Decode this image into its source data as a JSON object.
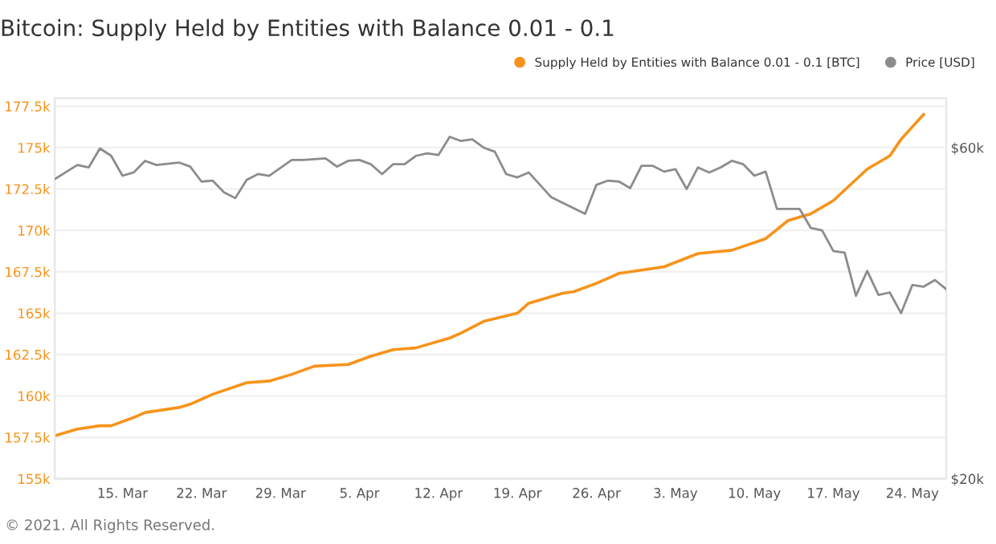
{
  "chart_data": {
    "type": "line",
    "title": "Bitcoin: Supply Held by Entities with Balance 0.01 - 0.1",
    "series": [
      {
        "name": "Supply Held by Entities with Balance 0.01 - 0.1 [BTC]",
        "color": "#f7931a",
        "axis": "y",
        "x": [
          "2021-03-09",
          "2021-03-11",
          "2021-03-13",
          "2021-03-14",
          "2021-03-16",
          "2021-03-17",
          "2021-03-20",
          "2021-03-21",
          "2021-03-23",
          "2021-03-26",
          "2021-03-28",
          "2021-03-30",
          "2021-04-01",
          "2021-04-04",
          "2021-04-06",
          "2021-04-08",
          "2021-04-10",
          "2021-04-13",
          "2021-04-14",
          "2021-04-16",
          "2021-04-19",
          "2021-04-20",
          "2021-04-23",
          "2021-04-24",
          "2021-04-26",
          "2021-04-28",
          "2021-05-02",
          "2021-05-05",
          "2021-05-08",
          "2021-05-11",
          "2021-05-13",
          "2021-05-15",
          "2021-05-17",
          "2021-05-20",
          "2021-05-22",
          "2021-05-23",
          "2021-05-25"
        ],
        "values": [
          157600,
          158000,
          158200,
          158200,
          158700,
          159000,
          159300,
          159500,
          160100,
          160800,
          160900,
          161300,
          161800,
          161900,
          162400,
          162800,
          162900,
          163500,
          163800,
          164500,
          165000,
          165600,
          166200,
          166300,
          166800,
          167400,
          167800,
          168600,
          168800,
          169500,
          170600,
          171000,
          171800,
          173700,
          174500,
          175500,
          177000
        ]
      },
      {
        "name": "Price [USD]",
        "color": "#8c8c8c",
        "axis": "y2",
        "x": [
          "2021-03-09",
          "2021-03-11",
          "2021-03-12",
          "2021-03-13",
          "2021-03-14",
          "2021-03-15",
          "2021-03-16",
          "2021-03-17",
          "2021-03-18",
          "2021-03-20",
          "2021-03-21",
          "2021-03-22",
          "2021-03-23",
          "2021-03-24",
          "2021-03-25",
          "2021-03-26",
          "2021-03-27",
          "2021-03-28",
          "2021-03-30",
          "2021-03-31",
          "2021-04-02",
          "2021-04-03",
          "2021-04-04",
          "2021-04-05",
          "2021-04-06",
          "2021-04-07",
          "2021-04-08",
          "2021-04-09",
          "2021-04-10",
          "2021-04-11",
          "2021-04-12",
          "2021-04-13",
          "2021-04-14",
          "2021-04-15",
          "2021-04-16",
          "2021-04-17",
          "2021-04-18",
          "2021-04-19",
          "2021-04-20",
          "2021-04-22",
          "2021-04-25",
          "2021-04-26",
          "2021-04-27",
          "2021-04-28",
          "2021-04-29",
          "2021-04-30",
          "2021-05-01",
          "2021-05-02",
          "2021-05-03",
          "2021-05-04",
          "2021-05-05",
          "2021-05-06",
          "2021-05-07",
          "2021-05-08",
          "2021-05-09",
          "2021-05-10",
          "2021-05-11",
          "2021-05-12",
          "2021-05-14",
          "2021-05-15",
          "2021-05-16",
          "2021-05-17",
          "2021-05-18",
          "2021-05-19",
          "2021-05-20",
          "2021-05-21",
          "2021-05-22",
          "2021-05-23",
          "2021-05-24",
          "2021-05-25",
          "2021-05-26",
          "2021-05-27"
        ],
        "values": [
          56200,
          57900,
          57600,
          59900,
          59000,
          56600,
          57000,
          58400,
          57900,
          58200,
          57700,
          55900,
          56000,
          54600,
          53900,
          56100,
          56800,
          56600,
          58500,
          58500,
          58700,
          57700,
          58400,
          58500,
          58000,
          56800,
          58000,
          58000,
          59000,
          59300,
          59100,
          61300,
          60800,
          61000,
          60000,
          59500,
          56800,
          56400,
          57000,
          54000,
          52000,
          55500,
          56000,
          55900,
          55100,
          57800,
          57800,
          57100,
          57400,
          55000,
          57600,
          57000,
          57600,
          58400,
          58000,
          56600,
          57100,
          52600,
          52600,
          50300,
          50000,
          47500,
          47300,
          42100,
          45100,
          42200,
          42500,
          40000,
          43400,
          43200,
          44000,
          42900
        ]
      }
    ],
    "xlim": [
      "2021-03-09",
      "2021-05-27"
    ],
    "xticks": [
      {
        "value": "2021-03-15",
        "label": "15. Mar"
      },
      {
        "value": "2021-03-22",
        "label": "22. Mar"
      },
      {
        "value": "2021-03-29",
        "label": "29. Mar"
      },
      {
        "value": "2021-04-05",
        "label": "5. Apr"
      },
      {
        "value": "2021-04-12",
        "label": "12. Apr"
      },
      {
        "value": "2021-04-19",
        "label": "19. Apr"
      },
      {
        "value": "2021-04-26",
        "label": "26. Apr"
      },
      {
        "value": "2021-05-03",
        "label": "3. May"
      },
      {
        "value": "2021-05-10",
        "label": "10. May"
      },
      {
        "value": "2021-05-17",
        "label": "17. May"
      },
      {
        "value": "2021-05-24",
        "label": "24. May"
      }
    ],
    "ylim": [
      155000,
      178000
    ],
    "yticks": [
      {
        "value": 155000,
        "label": "155k"
      },
      {
        "value": 157500,
        "label": "157.5k"
      },
      {
        "value": 160000,
        "label": "160k"
      },
      {
        "value": 162500,
        "label": "162.5k"
      },
      {
        "value": 165000,
        "label": "165k"
      },
      {
        "value": 167500,
        "label": "167.5k"
      },
      {
        "value": 170000,
        "label": "170k"
      },
      {
        "value": 172500,
        "label": "172.5k"
      },
      {
        "value": 175000,
        "label": "175k"
      },
      {
        "value": 177500,
        "label": "177.5k"
      }
    ],
    "y2lim": [
      20000,
      66000
    ],
    "y2ticks": [
      {
        "value": 20000,
        "label": "$20k"
      },
      {
        "value": 60000,
        "label": "$60k"
      }
    ],
    "grid": "y",
    "legend": "top right",
    "marker": "none",
    "line_style": "solid",
    "annotations": [
      "© 2021. All Rights Reserved."
    ]
  }
}
